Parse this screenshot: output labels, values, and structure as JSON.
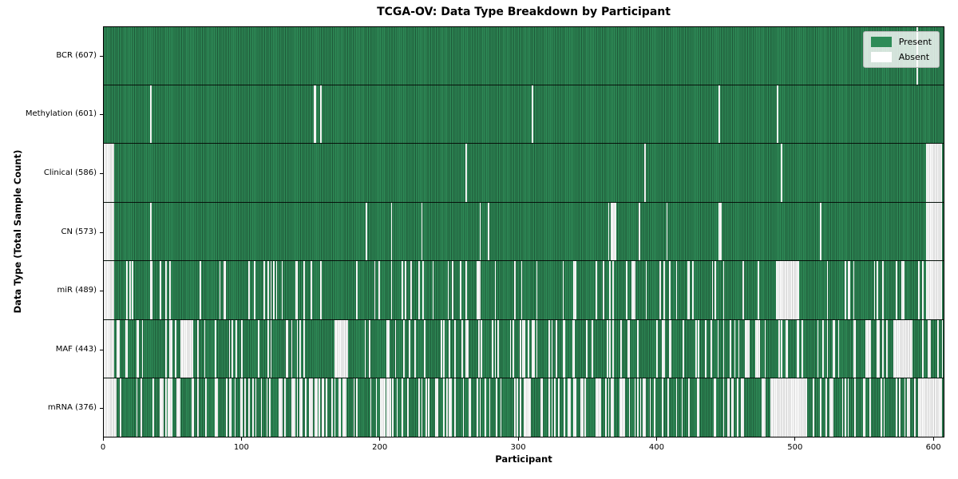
{
  "chart_data": {
    "type": "heatmap",
    "title": "TCGA-OV: Data Type Breakdown by Participant",
    "xlabel": "Participant",
    "ylabel": "Data Type (Total Sample Count)",
    "x_ticks": [
      0,
      100,
      200,
      300,
      400,
      500,
      600
    ],
    "xlim": [
      0,
      608
    ],
    "n_participants": 608,
    "value_encoding": "binary: Present (green) / Absent (white) per participant per data type",
    "legend_position": "upper right",
    "legend_entries": [
      {
        "label": "Present",
        "color": "#2e8b57"
      },
      {
        "label": "Absent",
        "color": "#ffffff"
      }
    ],
    "colors": {
      "present": "#2e8b57",
      "present_edge": "#1d5737",
      "absent": "#ffffff",
      "absent_edge": "#c9c9c9"
    },
    "rows": [
      {
        "key": "bcr",
        "data_type": "BCR",
        "label": "BCR (607)",
        "present_count": 607,
        "absent_blocks": [
          [
            588,
            588
          ]
        ],
        "seed": 7
      },
      {
        "key": "methylation",
        "data_type": "Methylation",
        "label": "Methylation (601)",
        "present_count": 601,
        "absent_blocks": [
          [
            34,
            34
          ],
          [
            152,
            153
          ],
          [
            157,
            157
          ],
          [
            310,
            310
          ],
          [
            445,
            445
          ],
          [
            487,
            487
          ]
        ],
        "seed": 13
      },
      {
        "key": "clinical",
        "data_type": "Clinical",
        "label": "Clinical (586)",
        "present_count": 586,
        "absent_blocks": [
          [
            0,
            7
          ],
          [
            391,
            391
          ],
          [
            490,
            490
          ],
          [
            595,
            605
          ]
        ],
        "seed": 21
      },
      {
        "key": "cn",
        "data_type": "CN",
        "label": "CN (573)",
        "present_count": 573,
        "absent_blocks": [
          [
            0,
            7
          ],
          [
            34,
            34
          ],
          [
            190,
            190
          ],
          [
            208,
            208
          ],
          [
            230,
            230
          ],
          [
            278,
            278
          ],
          [
            367,
            370
          ],
          [
            387,
            387
          ],
          [
            445,
            446
          ],
          [
            595,
            605
          ]
        ],
        "seed": 42
      },
      {
        "key": "mir",
        "data_type": "miR",
        "label": "miR (489)",
        "present_count": 489,
        "absent_blocks": [
          [
            0,
            7
          ],
          [
            486,
            502
          ],
          [
            595,
            605
          ]
        ],
        "seed": 57
      },
      {
        "key": "maf",
        "data_type": "MAF",
        "label": "MAF (443)",
        "present_count": 443,
        "absent_blocks": [
          [
            0,
            7
          ],
          [
            57,
            64
          ],
          [
            168,
            175
          ],
          [
            571,
            583
          ]
        ],
        "seed": 91
      },
      {
        "key": "mrna",
        "data_type": "mRNA",
        "label": "mRNA (376)",
        "present_count": 376,
        "absent_blocks": [
          [
            0,
            9
          ],
          [
            482,
            508
          ],
          [
            590,
            605
          ]
        ],
        "seed": 123
      }
    ]
  }
}
